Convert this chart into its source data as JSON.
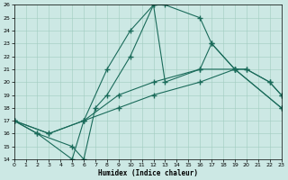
{
  "xlabel": "Humidex (Indice chaleur)",
  "bg_color": "#cce8e4",
  "line_color": "#1a6b5a",
  "xlim": [
    0,
    23
  ],
  "ylim": [
    14,
    26
  ],
  "xticks": [
    0,
    1,
    2,
    3,
    4,
    5,
    6,
    7,
    8,
    9,
    10,
    11,
    12,
    13,
    14,
    15,
    16,
    17,
    18,
    19,
    20,
    21,
    22,
    23
  ],
  "yticks": [
    14,
    15,
    16,
    17,
    18,
    19,
    20,
    21,
    22,
    23,
    24,
    25,
    26
  ],
  "series": [
    {
      "x": [
        0,
        3,
        6,
        9,
        12,
        16,
        19,
        23
      ],
      "y": [
        17,
        16,
        17,
        18,
        19,
        20,
        21,
        18
      ]
    },
    {
      "x": [
        0,
        3,
        6,
        9,
        12,
        16,
        19,
        23
      ],
      "y": [
        17,
        16,
        17,
        19,
        20,
        21,
        21,
        18
      ]
    },
    {
      "x": [
        0,
        2,
        5,
        6,
        7,
        8,
        10,
        12,
        13,
        16,
        17,
        19,
        20,
        22,
        23
      ],
      "y": [
        17,
        16,
        15,
        14,
        18,
        19,
        22,
        26,
        20,
        21,
        23,
        21,
        21,
        20,
        19
      ]
    },
    {
      "x": [
        0,
        2,
        5,
        6,
        8,
        10,
        12,
        13,
        16,
        17,
        19,
        20,
        22,
        23
      ],
      "y": [
        17,
        16,
        14,
        17,
        21,
        24,
        26,
        26,
        25,
        23,
        21,
        21,
        20,
        19
      ]
    }
  ]
}
